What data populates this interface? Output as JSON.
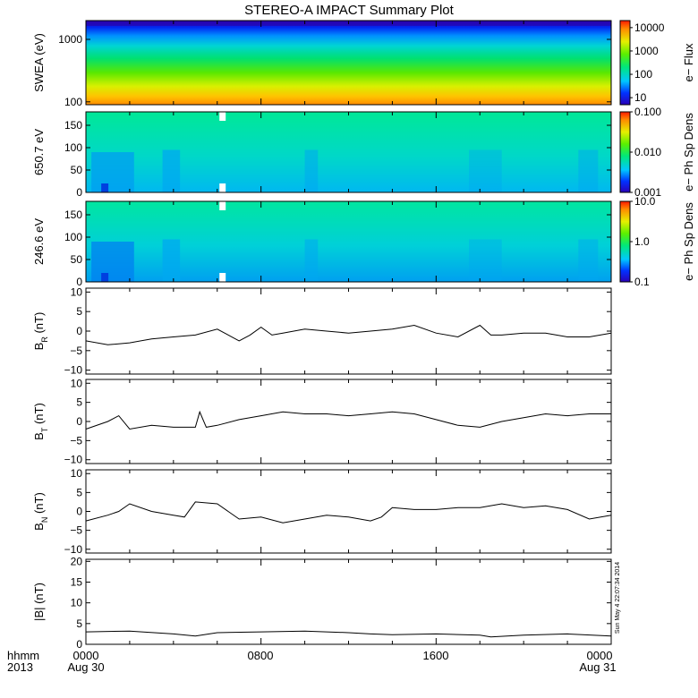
{
  "title": "STEREO-A IMPACT Summary Plot",
  "footer": {
    "left_line1": "hhmm",
    "left_line2": "2013",
    "tick_labels": [
      "0000",
      "0800",
      "1600",
      "0000"
    ],
    "date_start": "Aug 30",
    "date_end": "Aug 31"
  },
  "timestamp": "Sun May  4 22:07:34 2014",
  "chart_data": [
    {
      "type": "heatmap",
      "id": "swea",
      "ylabel": "SWEA (eV)",
      "y_scale": "log",
      "ylim": [
        90,
        2000
      ],
      "ytick_values": [
        100,
        1000
      ],
      "ytick_labels": [
        "100",
        "1000"
      ],
      "colorbar": {
        "label": "e− Flux",
        "scale": "log",
        "range": [
          5,
          20000
        ],
        "tick_values": [
          10,
          100,
          1000,
          10000
        ],
        "tick_labels": [
          "10",
          "100",
          "1000",
          "10000"
        ]
      }
    },
    {
      "type": "heatmap",
      "id": "pad650",
      "ylabel": "650.7 eV",
      "ylim": [
        0,
        180
      ],
      "ytick_values": [
        0,
        50,
        100,
        150
      ],
      "ytick_labels": [
        "0",
        "50",
        "100",
        "150"
      ],
      "colorbar": {
        "label": "e− Ph Sp Dens",
        "scale": "log",
        "range": [
          0.001,
          0.1
        ],
        "tick_values": [
          0.001,
          0.01,
          0.1
        ],
        "tick_labels": [
          "0.001",
          "0.010",
          "0.100"
        ]
      }
    },
    {
      "type": "heatmap",
      "id": "pad246",
      "ylabel": "246.6 eV",
      "ylim": [
        0,
        180
      ],
      "ytick_values": [
        0,
        50,
        100,
        150
      ],
      "ytick_labels": [
        "0",
        "50",
        "100",
        "150"
      ],
      "colorbar": {
        "label": "e− Ph Sp Dens",
        "scale": "log",
        "range": [
          0.1,
          10
        ],
        "tick_values": [
          0.1,
          1,
          10
        ],
        "tick_labels": [
          "0.1",
          "1.0",
          "10.0"
        ]
      }
    },
    {
      "type": "line",
      "id": "br",
      "ylabel": "B",
      "ylabel_sub": "R",
      "ylabel_unit": "(nT)",
      "ylim": [
        -11,
        11
      ],
      "ytick_values": [
        -10,
        -5,
        0,
        5,
        10
      ],
      "ytick_labels": [
        "−10",
        "−5",
        "0",
        "5",
        "10"
      ],
      "x": [
        0,
        1,
        2,
        3,
        4,
        5,
        6,
        7,
        7.5,
        8,
        8.5,
        9,
        10,
        11,
        12,
        13,
        14,
        15,
        16,
        17,
        18,
        18.5,
        19,
        20,
        21,
        22,
        23,
        24
      ],
      "values": [
        -2.5,
        -3.5,
        -3,
        -2,
        -1.5,
        -1,
        0.5,
        -2.5,
        -1,
        1,
        -1,
        -0.5,
        0.5,
        0,
        -0.5,
        0,
        0.5,
        1.5,
        -0.5,
        -1.5,
        1.5,
        -1,
        -1,
        -0.5,
        -0.5,
        -1.5,
        -1.5,
        -0.5
      ]
    },
    {
      "type": "line",
      "id": "bt",
      "ylabel": "B",
      "ylabel_sub": "T",
      "ylabel_unit": "(nT)",
      "ylim": [
        -11,
        11
      ],
      "ytick_values": [
        -10,
        -5,
        0,
        5,
        10
      ],
      "ytick_labels": [
        "−10",
        "−5",
        "0",
        "5",
        "10"
      ],
      "x": [
        0,
        1,
        1.5,
        2,
        3,
        4,
        5,
        5.2,
        5.5,
        6,
        7,
        8,
        9,
        10,
        11,
        12,
        13,
        14,
        15,
        16,
        17,
        18,
        19,
        20,
        21,
        22,
        23,
        24
      ],
      "values": [
        -2,
        0,
        1.5,
        -2,
        -1,
        -1.5,
        -1.5,
        2.5,
        -1.5,
        -1,
        0.5,
        1.5,
        2.5,
        2,
        2,
        1.5,
        2,
        2.5,
        2,
        0.5,
        -1,
        -1.5,
        0,
        1,
        2,
        1.5,
        2,
        2
      ]
    },
    {
      "type": "line",
      "id": "bn",
      "ylabel": "B",
      "ylabel_sub": "N",
      "ylabel_unit": "(nT)",
      "ylim": [
        -11,
        11
      ],
      "ytick_values": [
        -10,
        -5,
        0,
        5,
        10
      ],
      "ytick_labels": [
        "−10",
        "−5",
        "0",
        "5",
        "10"
      ],
      "x": [
        0,
        1,
        1.5,
        2,
        3,
        4,
        4.5,
        5,
        6,
        7,
        8,
        9,
        10,
        11,
        12,
        13,
        13.5,
        14,
        15,
        16,
        17,
        18,
        19,
        20,
        21,
        22,
        23,
        24
      ],
      "values": [
        -2.5,
        -1,
        0,
        2,
        0,
        -1,
        -1.5,
        2.5,
        2,
        -2,
        -1.5,
        -3,
        -2,
        -1,
        -1.5,
        -2.5,
        -1.5,
        1,
        0.5,
        0.5,
        1,
        1,
        2,
        1,
        1.5,
        0.5,
        -2,
        -1
      ]
    },
    {
      "type": "line",
      "id": "bmag",
      "ylabel": "|B| (nT)",
      "ylim": [
        0,
        20.5
      ],
      "ytick_values": [
        0,
        5,
        10,
        15,
        20
      ],
      "ytick_labels": [
        "0",
        "5",
        "10",
        "15",
        "20"
      ],
      "x": [
        0,
        2,
        4,
        5,
        6,
        8,
        10,
        12,
        13,
        14,
        16,
        18,
        18.5,
        20,
        22,
        24
      ],
      "values": [
        3,
        3.2,
        2.5,
        2,
        2.8,
        3,
        3.2,
        2.8,
        2.5,
        2.3,
        2.5,
        2.2,
        1.8,
        2.2,
        2.5,
        2
      ]
    }
  ]
}
